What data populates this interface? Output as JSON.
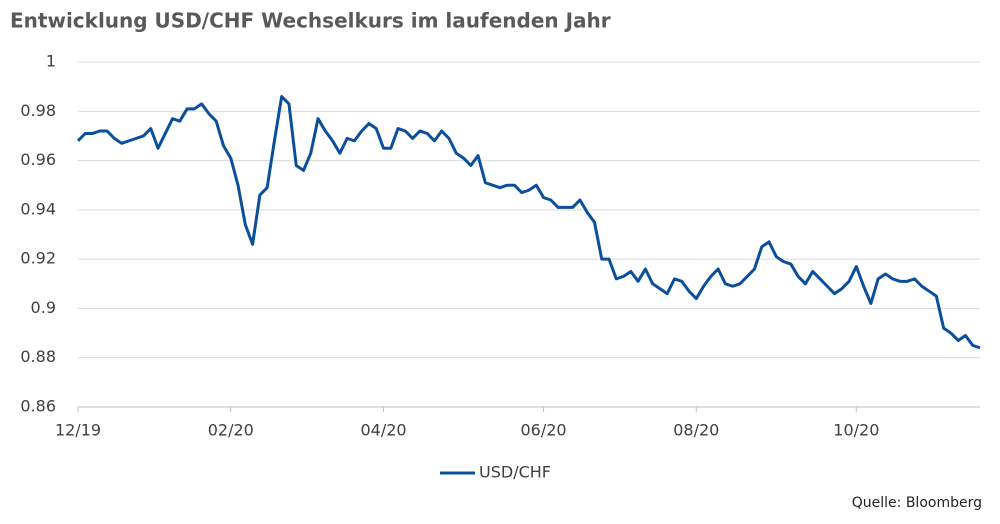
{
  "chart_data": {
    "type": "line",
    "title": "Entwicklung USD/CHF Wechselkurs im laufenden Jahr",
    "source": "Quelle: Bloomberg",
    "categories": [
      "12/19",
      null,
      null,
      null,
      null,
      null,
      null,
      null,
      null,
      null,
      null,
      null,
      null,
      null,
      null,
      null,
      null,
      null,
      null,
      null,
      null,
      "02/20",
      null,
      null,
      null,
      null,
      null,
      null,
      null,
      null,
      null,
      null,
      null,
      null,
      null,
      null,
      null,
      null,
      null,
      null,
      null,
      null,
      "04/20",
      null,
      null,
      null,
      null,
      null,
      null,
      null,
      null,
      null,
      null,
      null,
      null,
      null,
      null,
      null,
      null,
      null,
      null,
      null,
      null,
      null,
      "06/20",
      null,
      null,
      null,
      null,
      null,
      null,
      null,
      null,
      null,
      null,
      null,
      null,
      null,
      null,
      null,
      null,
      null,
      null,
      null,
      null,
      "08/20",
      null,
      null,
      null,
      null,
      null,
      null,
      null,
      null,
      null,
      null,
      null,
      null,
      null,
      null,
      null,
      null,
      null,
      null,
      null,
      null,
      null,
      "10/20",
      null,
      null,
      null,
      null,
      null,
      null,
      null,
      null,
      null,
      null,
      null,
      null,
      null,
      null,
      null,
      null,
      null
    ],
    "series": [
      {
        "name": "USD/CHF",
        "color": "#0b4f9c",
        "values": [
          0.968,
          0.971,
          0.971,
          0.972,
          0.972,
          0.969,
          0.967,
          0.968,
          0.969,
          0.97,
          0.973,
          0.965,
          0.971,
          0.977,
          0.976,
          0.981,
          0.981,
          0.983,
          0.979,
          0.976,
          0.966,
          0.961,
          0.95,
          0.934,
          0.926,
          0.946,
          0.949,
          0.968,
          0.986,
          0.983,
          0.958,
          0.956,
          0.963,
          0.977,
          0.972,
          0.968,
          0.963,
          0.969,
          0.968,
          0.972,
          0.975,
          0.973,
          0.965,
          0.965,
          0.973,
          0.972,
          0.969,
          0.972,
          0.971,
          0.968,
          0.972,
          0.969,
          0.963,
          0.961,
          0.958,
          0.962,
          0.951,
          0.95,
          0.949,
          0.95,
          0.95,
          0.947,
          0.948,
          0.95,
          0.945,
          0.944,
          0.941,
          0.941,
          0.941,
          0.944,
          0.939,
          0.935,
          0.92,
          0.92,
          0.912,
          0.913,
          0.915,
          0.911,
          0.916,
          0.91,
          0.908,
          0.906,
          0.912,
          0.911,
          0.907,
          0.904,
          0.909,
          0.913,
          0.916,
          0.91,
          0.909,
          0.91,
          0.913,
          0.916,
          0.925,
          0.927,
          0.921,
          0.919,
          0.918,
          0.913,
          0.91,
          0.915,
          0.912,
          0.909,
          0.906,
          0.908,
          0.911,
          0.917,
          0.909,
          0.902,
          0.912,
          0.914,
          0.912,
          0.911,
          0.911,
          0.912,
          0.909,
          0.907,
          0.905,
          0.892,
          0.89,
          0.887,
          0.889,
          0.885,
          0.884
        ]
      }
    ],
    "ylim": [
      0.86,
      1
    ],
    "yticks": [
      0.86,
      0.88,
      0.9,
      0.92,
      0.94,
      0.96,
      0.98,
      1
    ],
    "grid": true,
    "legend": "bottom"
  }
}
